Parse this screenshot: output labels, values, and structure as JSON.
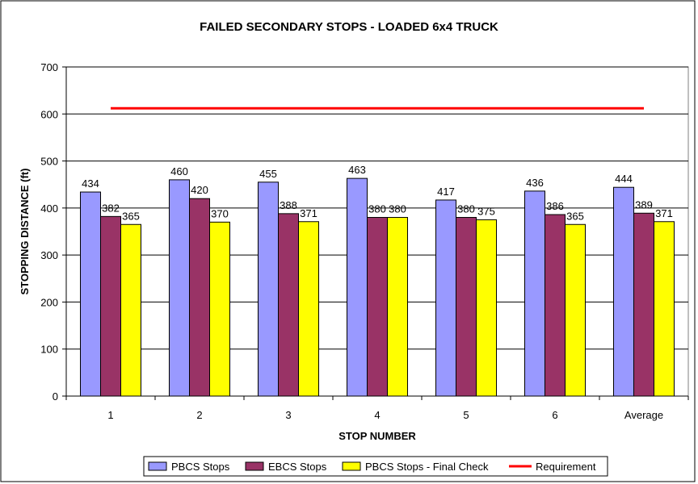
{
  "chart_data": {
    "type": "bar",
    "title": "FAILED SECONDARY STOPS - LOADED 6x4 TRUCK",
    "xlabel": "STOP NUMBER",
    "ylabel": "STOPPING DISTANCE (ft)",
    "ylim": [
      0,
      700
    ],
    "yticks": [
      0,
      100,
      200,
      300,
      400,
      500,
      600,
      700
    ],
    "categories": [
      "1",
      "2",
      "3",
      "4",
      "5",
      "6",
      "Average"
    ],
    "series": [
      {
        "name": "PBCS Stops",
        "color": "#9999ff",
        "values": [
          434,
          460,
          455,
          463,
          417,
          436,
          444
        ]
      },
      {
        "name": "EBCS Stops",
        "color": "#993366",
        "values": [
          382,
          420,
          388,
          380,
          380,
          386,
          389
        ]
      },
      {
        "name": "PBCS Stops - Final Check",
        "color": "#ffff00",
        "values": [
          365,
          370,
          371,
          380,
          375,
          365,
          371
        ]
      }
    ],
    "reference_line": {
      "name": "Requirement",
      "color": "#ff0000",
      "value": 612
    },
    "grid": true,
    "legend": "bottom"
  }
}
